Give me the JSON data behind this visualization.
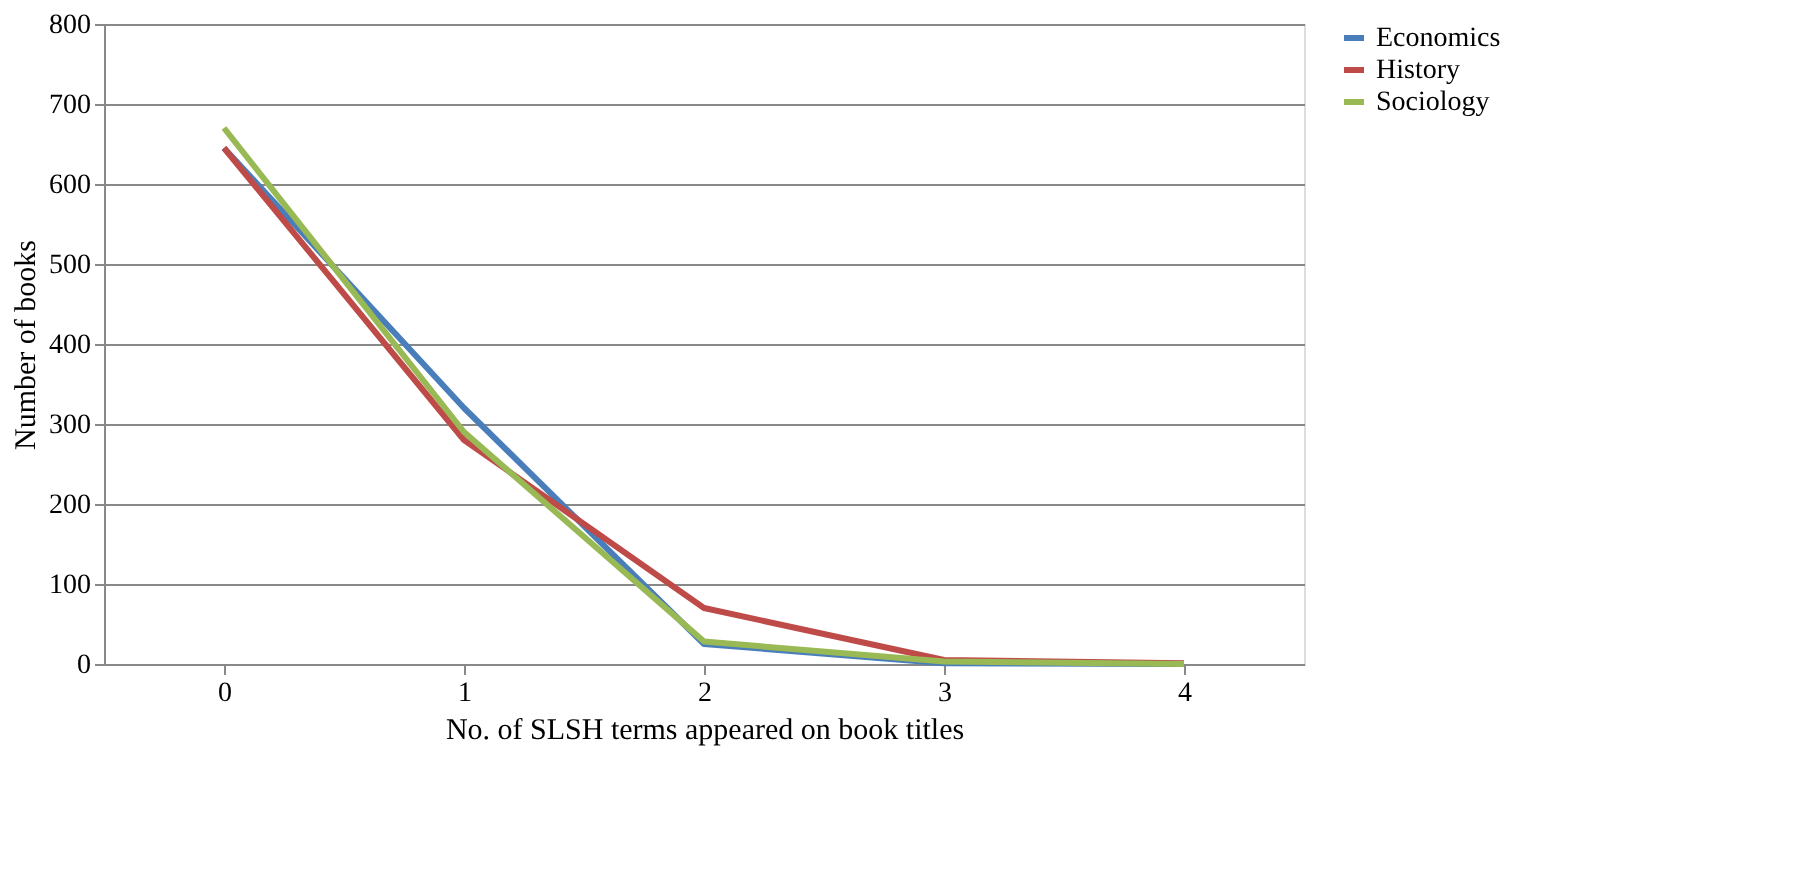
{
  "chart_data": {
    "type": "line",
    "xlabel": "No. of SLSH terms appeared on book titles",
    "ylabel": "Number of books",
    "categories": [
      "0",
      "1",
      "2",
      "3",
      "4"
    ],
    "series": [
      {
        "name": "Economics",
        "color": "#4a7ebb",
        "values": [
          645,
          320,
          25,
          1,
          0
        ]
      },
      {
        "name": "History",
        "color": "#be4b48",
        "values": [
          645,
          280,
          70,
          5,
          1
        ]
      },
      {
        "name": "Sociology",
        "color": "#98b954",
        "values": [
          670,
          290,
          28,
          3,
          0
        ]
      }
    ],
    "ylim": [
      0,
      800
    ],
    "yticks": [
      0,
      100,
      200,
      300,
      400,
      500,
      600,
      700,
      800
    ],
    "grid": "y",
    "legend": "right",
    "marker": "none",
    "line_style": "solid"
  }
}
